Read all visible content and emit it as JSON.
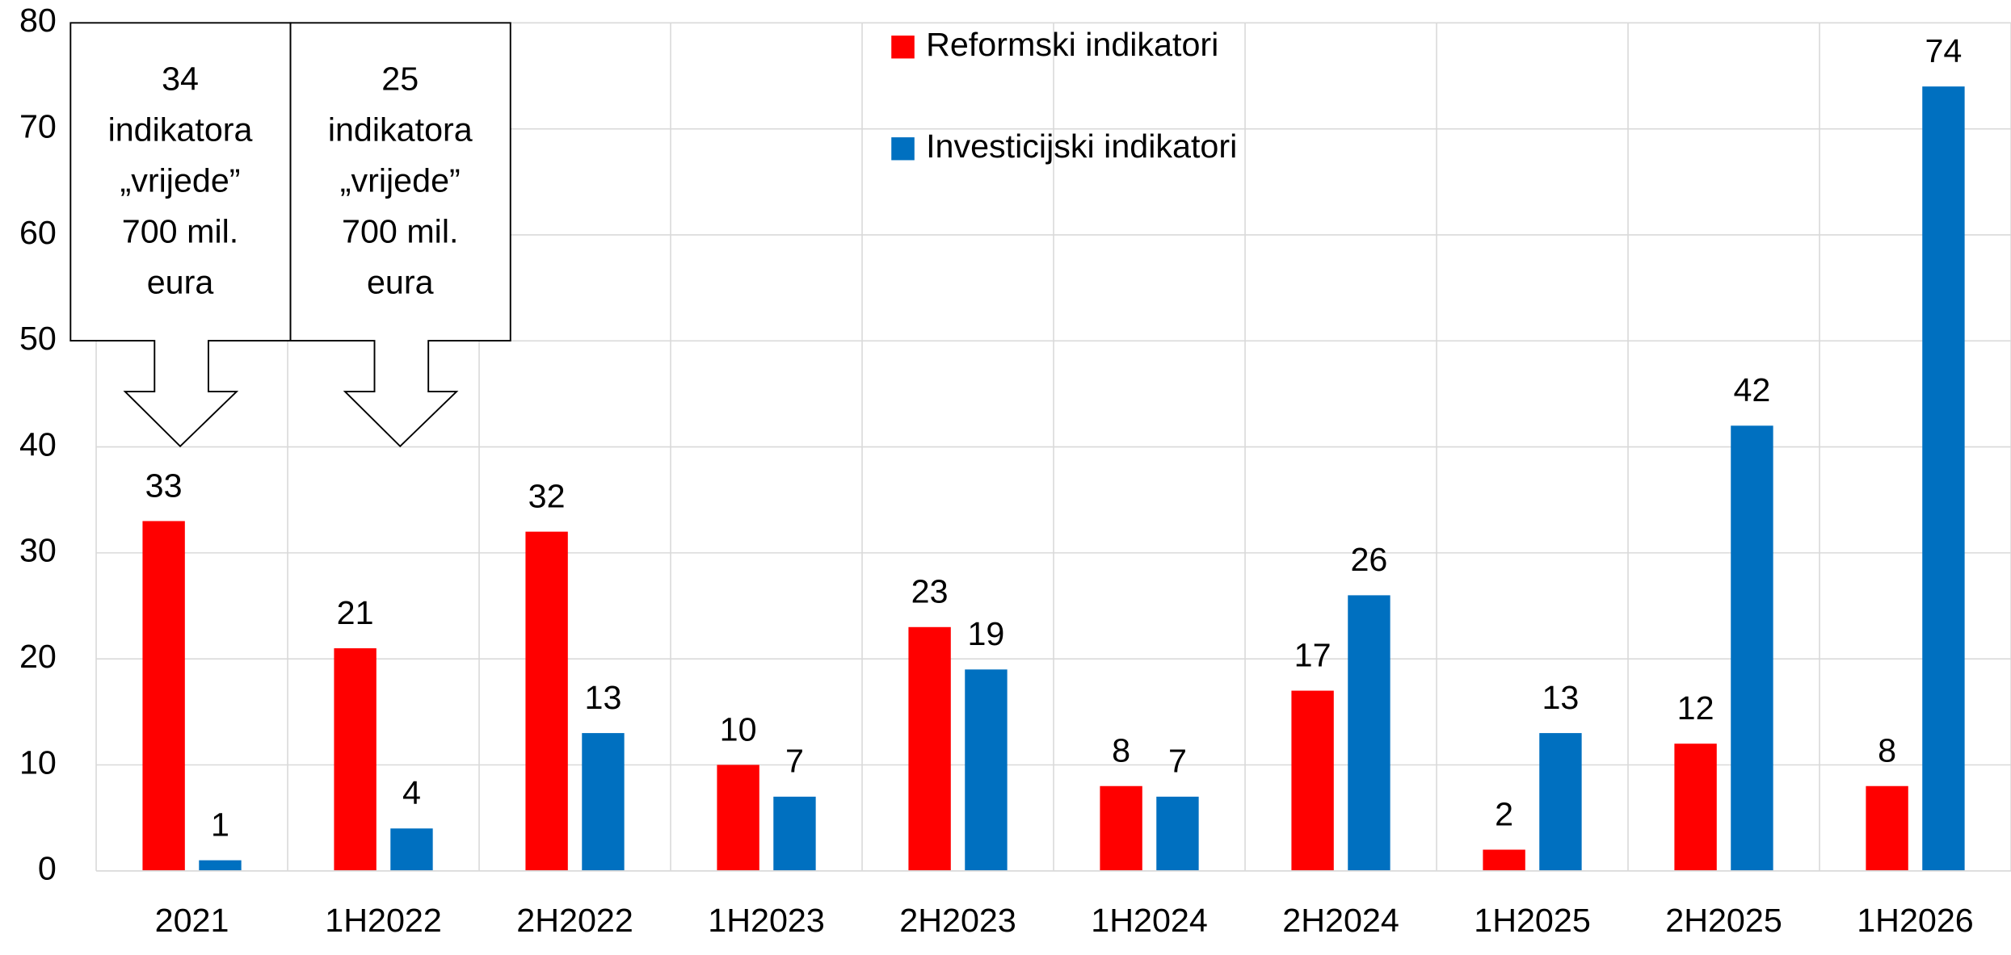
{
  "chart_data": {
    "type": "bar",
    "categories": [
      "2021",
      "1H2022",
      "2H2022",
      "1H2023",
      "2H2023",
      "1H2024",
      "2H2024",
      "1H2025",
      "2H2025",
      "1H2026"
    ],
    "series": [
      {
        "name": "Reformski indikatori",
        "color": "#ff0000",
        "values": [
          33,
          21,
          32,
          10,
          23,
          8,
          17,
          2,
          12,
          8
        ]
      },
      {
        "name": "Investicijski indikatori",
        "color": "#0070c0",
        "values": [
          1,
          4,
          13,
          7,
          19,
          7,
          26,
          13,
          42,
          74
        ]
      }
    ],
    "ylim": [
      0,
      80
    ],
    "yticks": [
      0,
      10,
      20,
      30,
      40,
      50,
      60,
      70,
      80
    ],
    "grid": true,
    "legend": "top",
    "annotations": [
      {
        "lines": [
          "34",
          "indikatora",
          "„vrijede”",
          "700 mil.",
          "eura"
        ]
      },
      {
        "lines": [
          "25",
          "indikatora",
          "„vrijede”",
          "700 mil.",
          "eura"
        ]
      }
    ]
  }
}
